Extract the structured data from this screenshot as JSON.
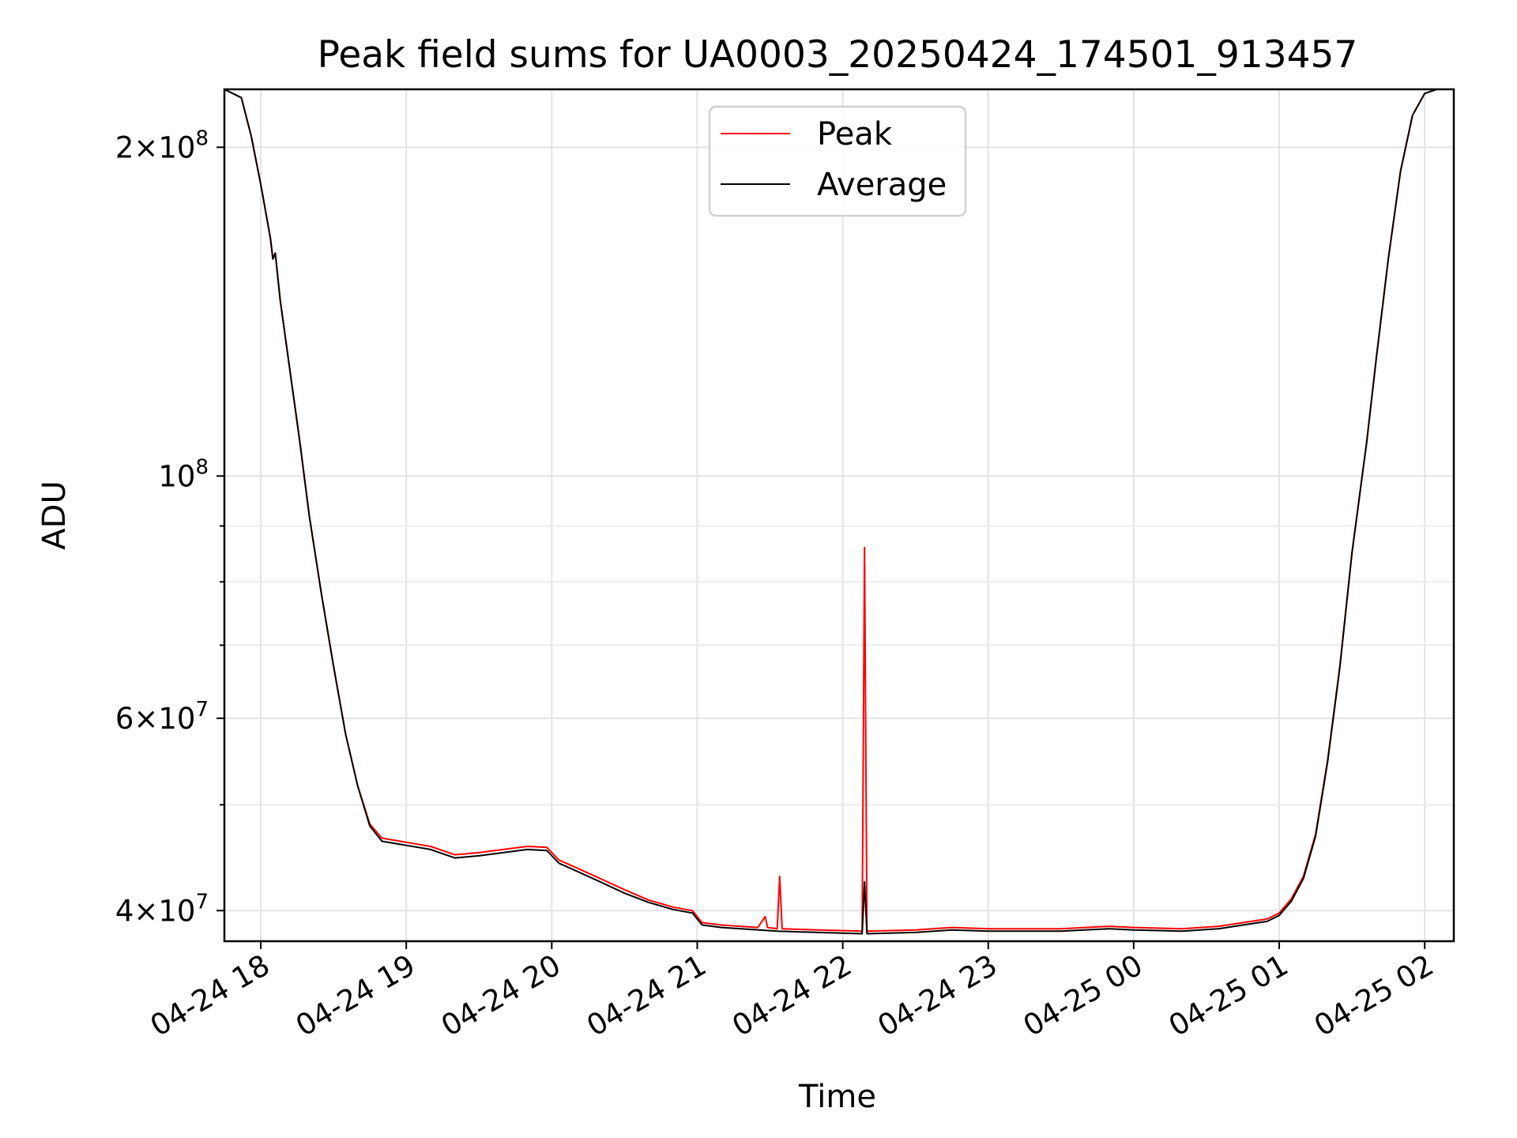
{
  "chart_data": {
    "type": "line",
    "title": "Peak field sums for UA0003_20250424_174501_913457",
    "xlabel": "Time",
    "ylabel": "ADU",
    "yscale": "log",
    "ylim": [
      37500000,
      226000000
    ],
    "xlim": [
      "2025-04-24 17:45",
      "2025-04-25 02:12"
    ],
    "grid": true,
    "legend": "upper center",
    "x_ticks": [
      {
        "t": "2025-04-24 18:00",
        "label": "04-24 18"
      },
      {
        "t": "2025-04-24 19:00",
        "label": "04-24 19"
      },
      {
        "t": "2025-04-24 20:00",
        "label": "04-24 20"
      },
      {
        "t": "2025-04-24 21:00",
        "label": "04-24 21"
      },
      {
        "t": "2025-04-24 22:00",
        "label": "04-24 22"
      },
      {
        "t": "2025-04-24 23:00",
        "label": "04-24 23"
      },
      {
        "t": "2025-04-25 00:00",
        "label": "04-25 00"
      },
      {
        "t": "2025-04-25 01:00",
        "label": "04-25 01"
      },
      {
        "t": "2025-04-25 02:00",
        "label": "04-25 02"
      }
    ],
    "y_major_ticks": [
      {
        "value": 40000000,
        "mantissa": "4",
        "exponent": "7"
      },
      {
        "value": 60000000,
        "mantissa": "6",
        "exponent": "7"
      },
      {
        "value": 100000000,
        "mantissa": "",
        "exponent": "8"
      },
      {
        "value": 200000000,
        "mantissa": "2",
        "exponent": "8"
      }
    ],
    "y_minor_ticks": [
      50000000,
      70000000,
      80000000,
      90000000
    ],
    "series": [
      {
        "name": "Peak",
        "color": "#ff0000",
        "points": [
          [
            "2025-04-24 17:45",
            226000000
          ],
          [
            "2025-04-24 17:52",
            222000000
          ],
          [
            "2025-04-24 17:56",
            205000000
          ],
          [
            "2025-04-24 18:00",
            185000000
          ],
          [
            "2025-04-24 18:04",
            165000000
          ],
          [
            "2025-04-24 18:05",
            158000000
          ],
          [
            "2025-04-24 18:06",
            160000000
          ],
          [
            "2025-04-24 18:08",
            145000000
          ],
          [
            "2025-04-24 18:12",
            125000000
          ],
          [
            "2025-04-24 18:16",
            108000000
          ],
          [
            "2025-04-24 18:20",
            92000000
          ],
          [
            "2025-04-24 18:25",
            78000000
          ],
          [
            "2025-04-24 18:30",
            67000000
          ],
          [
            "2025-04-24 18:35",
            58000000
          ],
          [
            "2025-04-24 18:40",
            52000000
          ],
          [
            "2025-04-24 18:45",
            48000000
          ],
          [
            "2025-04-24 18:50",
            46600000
          ],
          [
            "2025-04-24 19:00",
            46200000
          ],
          [
            "2025-04-24 19:10",
            45800000
          ],
          [
            "2025-04-24 19:20",
            45000000
          ],
          [
            "2025-04-24 19:30",
            45200000
          ],
          [
            "2025-04-24 19:40",
            45500000
          ],
          [
            "2025-04-24 19:50",
            45800000
          ],
          [
            "2025-04-24 19:58",
            45700000
          ],
          [
            "2025-04-24 20:03",
            44500000
          ],
          [
            "2025-04-24 20:10",
            43800000
          ],
          [
            "2025-04-24 20:20",
            42800000
          ],
          [
            "2025-04-24 20:30",
            41800000
          ],
          [
            "2025-04-24 20:40",
            40900000
          ],
          [
            "2025-04-24 20:50",
            40300000
          ],
          [
            "2025-04-24 20:58",
            40000000
          ],
          [
            "2025-04-24 21:02",
            39000000
          ],
          [
            "2025-04-24 21:10",
            38800000
          ],
          [
            "2025-04-24 21:25",
            38600000
          ],
          [
            "2025-04-24 21:28",
            39500000
          ],
          [
            "2025-04-24 21:29",
            38600000
          ],
          [
            "2025-04-24 21:33",
            38500000
          ],
          [
            "2025-04-24 21:34",
            43000000
          ],
          [
            "2025-04-24 21:35",
            38500000
          ],
          [
            "2025-04-24 21:50",
            38400000
          ],
          [
            "2025-04-24 22:08",
            38300000
          ],
          [
            "2025-04-24 22:09",
            86000000
          ],
          [
            "2025-04-24 22:10",
            38300000
          ],
          [
            "2025-04-24 22:30",
            38400000
          ],
          [
            "2025-04-24 22:45",
            38600000
          ],
          [
            "2025-04-24 23:00",
            38500000
          ],
          [
            "2025-04-24 23:30",
            38500000
          ],
          [
            "2025-04-24 23:50",
            38700000
          ],
          [
            "2025-04-25 00:00",
            38600000
          ],
          [
            "2025-04-25 00:20",
            38500000
          ],
          [
            "2025-04-25 00:35",
            38700000
          ],
          [
            "2025-04-25 00:45",
            39000000
          ],
          [
            "2025-04-25 00:55",
            39300000
          ],
          [
            "2025-04-25 01:00",
            39800000
          ],
          [
            "2025-04-25 01:05",
            41000000
          ],
          [
            "2025-04-25 01:10",
            43000000
          ],
          [
            "2025-04-25 01:15",
            47000000
          ],
          [
            "2025-04-25 01:20",
            55000000
          ],
          [
            "2025-04-25 01:25",
            67000000
          ],
          [
            "2025-04-25 01:30",
            85000000
          ],
          [
            "2025-04-25 01:35",
            103000000
          ],
          [
            "2025-04-25 01:36",
            107000000
          ],
          [
            "2025-04-25 01:40",
            128000000
          ],
          [
            "2025-04-25 01:45",
            158000000
          ],
          [
            "2025-04-25 01:50",
            190000000
          ],
          [
            "2025-04-25 01:55",
            214000000
          ],
          [
            "2025-04-25 02:00",
            224000000
          ],
          [
            "2025-04-25 02:05",
            226000000
          ],
          [
            "2025-04-25 02:12",
            226000000
          ]
        ]
      },
      {
        "name": "Average",
        "color": "#000000",
        "points": [
          [
            "2025-04-24 17:45",
            226000000
          ],
          [
            "2025-04-24 17:52",
            222000000
          ],
          [
            "2025-04-24 17:56",
            205000000
          ],
          [
            "2025-04-24 18:00",
            185000000
          ],
          [
            "2025-04-24 18:04",
            165000000
          ],
          [
            "2025-04-24 18:05",
            158000000
          ],
          [
            "2025-04-24 18:06",
            160000000
          ],
          [
            "2025-04-24 18:08",
            145000000
          ],
          [
            "2025-04-24 18:12",
            125000000
          ],
          [
            "2025-04-24 18:16",
            108000000
          ],
          [
            "2025-04-24 18:20",
            92000000
          ],
          [
            "2025-04-24 18:25",
            78000000
          ],
          [
            "2025-04-24 18:30",
            67000000
          ],
          [
            "2025-04-24 18:35",
            58000000
          ],
          [
            "2025-04-24 18:40",
            52000000
          ],
          [
            "2025-04-24 18:45",
            47800000
          ],
          [
            "2025-04-24 18:50",
            46300000
          ],
          [
            "2025-04-24 19:00",
            45900000
          ],
          [
            "2025-04-24 19:10",
            45500000
          ],
          [
            "2025-04-24 19:20",
            44700000
          ],
          [
            "2025-04-24 19:30",
            44900000
          ],
          [
            "2025-04-24 19:40",
            45200000
          ],
          [
            "2025-04-24 19:50",
            45500000
          ],
          [
            "2025-04-24 19:58",
            45400000
          ],
          [
            "2025-04-24 20:03",
            44200000
          ],
          [
            "2025-04-24 20:10",
            43500000
          ],
          [
            "2025-04-24 20:20",
            42500000
          ],
          [
            "2025-04-24 20:30",
            41500000
          ],
          [
            "2025-04-24 20:40",
            40700000
          ],
          [
            "2025-04-24 20:50",
            40100000
          ],
          [
            "2025-04-24 20:58",
            39800000
          ],
          [
            "2025-04-24 21:02",
            38800000
          ],
          [
            "2025-04-24 21:10",
            38600000
          ],
          [
            "2025-04-24 21:33",
            38300000
          ],
          [
            "2025-04-24 21:50",
            38200000
          ],
          [
            "2025-04-24 22:08",
            38100000
          ],
          [
            "2025-04-24 22:09",
            42500000
          ],
          [
            "2025-04-24 22:10",
            38100000
          ],
          [
            "2025-04-24 22:30",
            38200000
          ],
          [
            "2025-04-24 22:45",
            38400000
          ],
          [
            "2025-04-24 23:00",
            38300000
          ],
          [
            "2025-04-24 23:30",
            38300000
          ],
          [
            "2025-04-24 23:50",
            38500000
          ],
          [
            "2025-04-25 00:00",
            38400000
          ],
          [
            "2025-04-25 00:20",
            38300000
          ],
          [
            "2025-04-25 00:35",
            38500000
          ],
          [
            "2025-04-25 00:45",
            38800000
          ],
          [
            "2025-04-25 00:55",
            39100000
          ],
          [
            "2025-04-25 01:00",
            39600000
          ],
          [
            "2025-04-25 01:05",
            40800000
          ],
          [
            "2025-04-25 01:10",
            42800000
          ],
          [
            "2025-04-25 01:15",
            46800000
          ],
          [
            "2025-04-25 01:20",
            54800000
          ],
          [
            "2025-04-25 01:25",
            66800000
          ],
          [
            "2025-04-25 01:30",
            85000000
          ],
          [
            "2025-04-25 01:35",
            103000000
          ],
          [
            "2025-04-25 01:36",
            107000000
          ],
          [
            "2025-04-25 01:40",
            128000000
          ],
          [
            "2025-04-25 01:45",
            158000000
          ],
          [
            "2025-04-25 01:50",
            190000000
          ],
          [
            "2025-04-25 01:55",
            214000000
          ],
          [
            "2025-04-25 02:00",
            224000000
          ],
          [
            "2025-04-25 02:05",
            226000000
          ],
          [
            "2025-04-25 02:12",
            226000000
          ]
        ]
      }
    ]
  }
}
